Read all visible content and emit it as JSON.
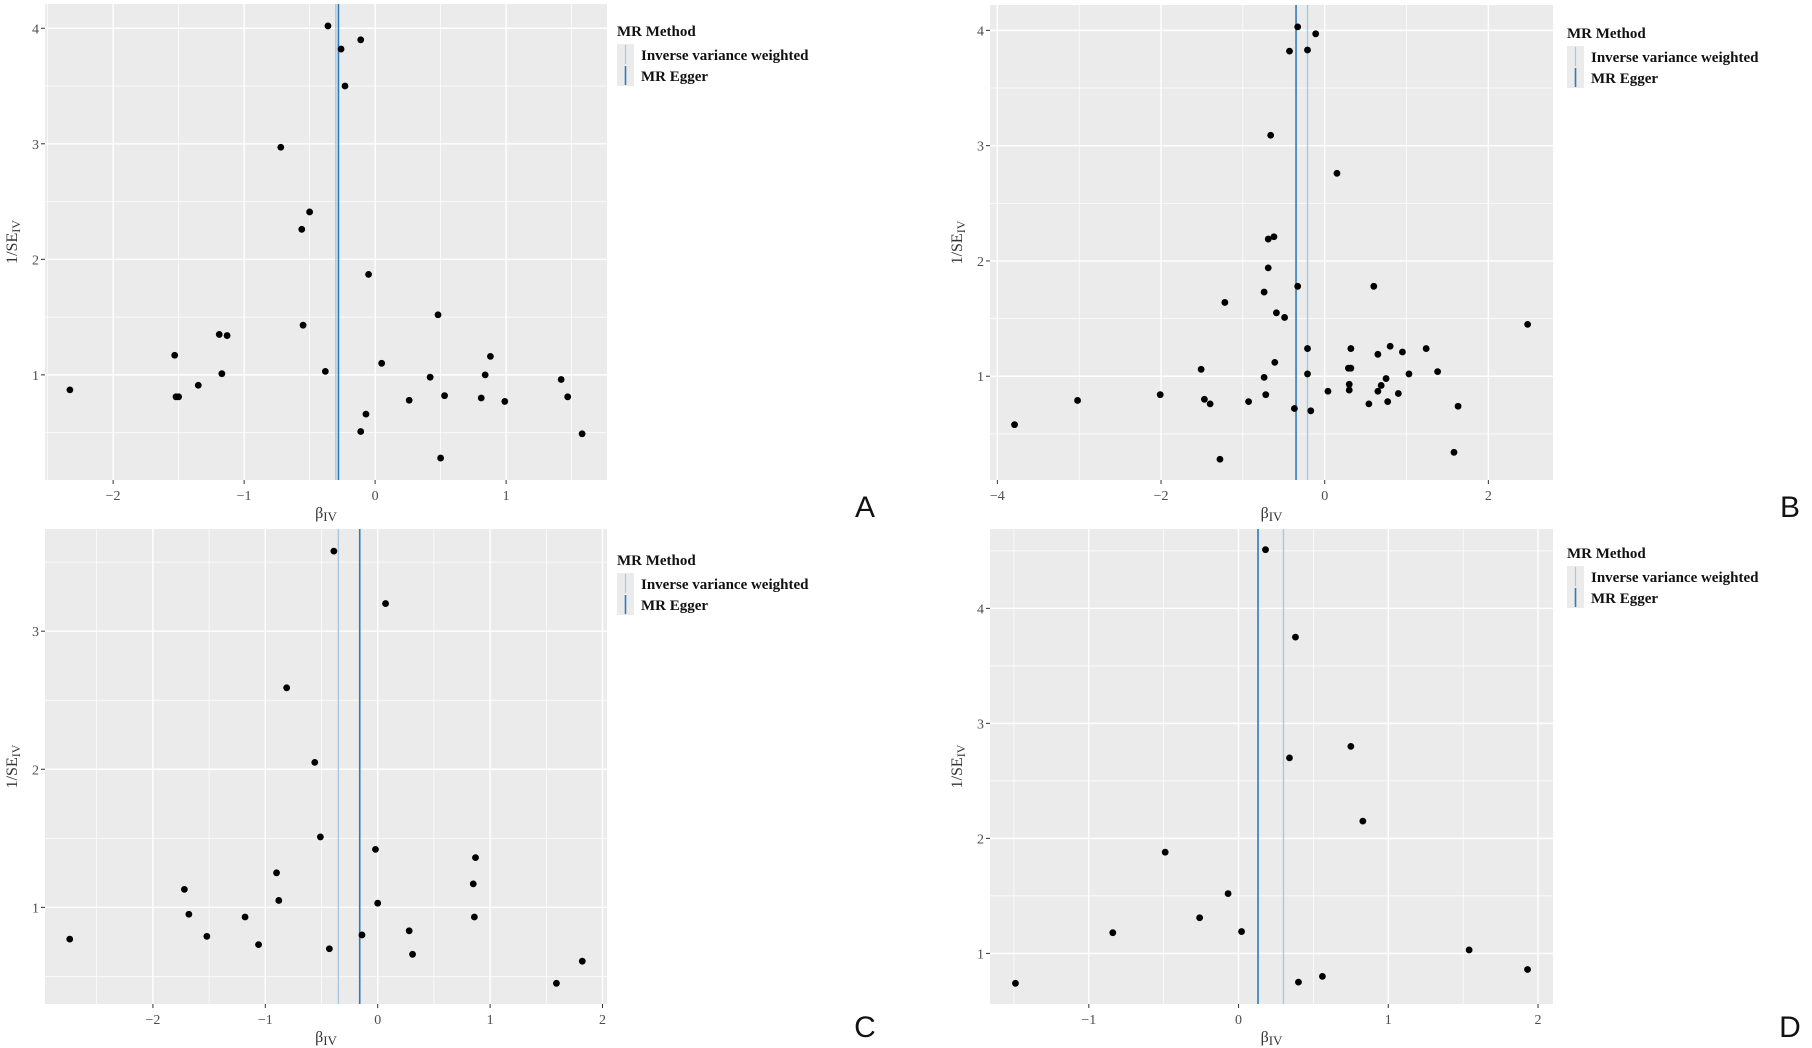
{
  "figure": {
    "legend_title": "MR Method",
    "colors": {
      "ivw": "#a6c8e0",
      "egger": "#2f7bb8",
      "panel_bg": "#ebebeb",
      "point": "#000000"
    }
  },
  "chart_data": [
    {
      "type": "scatter",
      "panel_label": "A",
      "xlabel": "βIV",
      "ylabel": "1/SEIV",
      "xlim": [
        -2.52,
        1.77
      ],
      "ylim": [
        0.09,
        4.21
      ],
      "xticks": [
        -2,
        -1,
        0,
        1
      ],
      "yticks": [
        1,
        2,
        3,
        4
      ],
      "grid": true,
      "legend_position": "right",
      "legend": [
        "Inverse variance weighted",
        "MR Egger"
      ],
      "vlines": {
        "Inverse variance weighted": -0.3,
        "MR Egger": -0.28
      },
      "points": [
        [
          -0.36,
          4.02
        ],
        [
          -0.11,
          3.9
        ],
        [
          -0.26,
          3.82
        ],
        [
          -0.23,
          3.5
        ],
        [
          -0.72,
          2.97
        ],
        [
          -0.5,
          2.41
        ],
        [
          -0.56,
          2.26
        ],
        [
          -0.05,
          1.87
        ],
        [
          0.48,
          1.52
        ],
        [
          -0.55,
          1.43
        ],
        [
          -1.19,
          1.35
        ],
        [
          -1.13,
          1.34
        ],
        [
          -1.53,
          1.17
        ],
        [
          0.88,
          1.16
        ],
        [
          0.05,
          1.1
        ],
        [
          -0.38,
          1.03
        ],
        [
          -1.17,
          1.01
        ],
        [
          0.84,
          1.0
        ],
        [
          0.42,
          0.98
        ],
        [
          1.42,
          0.96
        ],
        [
          -1.35,
          0.91
        ],
        [
          -2.33,
          0.87
        ],
        [
          -1.52,
          0.81
        ],
        [
          -1.5,
          0.81
        ],
        [
          0.53,
          0.82
        ],
        [
          1.47,
          0.81
        ],
        [
          0.81,
          0.8
        ],
        [
          0.26,
          0.78
        ],
        [
          0.99,
          0.77
        ],
        [
          -0.07,
          0.66
        ],
        [
          -0.11,
          0.51
        ],
        [
          1.58,
          0.49
        ],
        [
          0.5,
          0.28
        ]
      ]
    },
    {
      "type": "scatter",
      "panel_label": "B",
      "xlabel": "βIV",
      "ylabel": "1/SEIV",
      "xlim": [
        -4.09,
        2.79
      ],
      "ylim": [
        0.1,
        4.22
      ],
      "xticks": [
        -4,
        -2,
        0,
        2
      ],
      "yticks": [
        1,
        2,
        3,
        4
      ],
      "grid": true,
      "legend_position": "right",
      "legend": [
        "Inverse variance weighted",
        "MR Egger"
      ],
      "vlines": {
        "Inverse variance weighted": -0.21,
        "MR Egger": -0.35
      },
      "points": [
        [
          -0.33,
          4.03
        ],
        [
          -0.11,
          3.97
        ],
        [
          -0.43,
          3.82
        ],
        [
          -0.21,
          3.83
        ],
        [
          -0.66,
          3.09
        ],
        [
          0.15,
          2.76
        ],
        [
          -0.62,
          2.21
        ],
        [
          -0.69,
          2.19
        ],
        [
          -0.69,
          1.94
        ],
        [
          -0.33,
          1.78
        ],
        [
          0.6,
          1.78
        ],
        [
          -0.74,
          1.73
        ],
        [
          -1.22,
          1.64
        ],
        [
          -0.59,
          1.55
        ],
        [
          -0.49,
          1.51
        ],
        [
          2.48,
          1.45
        ],
        [
          0.8,
          1.26
        ],
        [
          -0.21,
          1.24
        ],
        [
          0.32,
          1.24
        ],
        [
          1.24,
          1.24
        ],
        [
          0.95,
          1.21
        ],
        [
          0.65,
          1.19
        ],
        [
          -0.61,
          1.12
        ],
        [
          0.29,
          1.07
        ],
        [
          0.32,
          1.07
        ],
        [
          -1.51,
          1.06
        ],
        [
          1.38,
          1.04
        ],
        [
          -0.21,
          1.02
        ],
        [
          1.03,
          1.02
        ],
        [
          -0.74,
          0.99
        ],
        [
          0.75,
          0.98
        ],
        [
          0.3,
          0.93
        ],
        [
          0.69,
          0.92
        ],
        [
          0.3,
          0.88
        ],
        [
          0.04,
          0.87
        ],
        [
          0.65,
          0.87
        ],
        [
          -2.01,
          0.84
        ],
        [
          0.9,
          0.85
        ],
        [
          -0.72,
          0.84
        ],
        [
          -3.02,
          0.79
        ],
        [
          -1.47,
          0.8
        ],
        [
          -1.4,
          0.76
        ],
        [
          -0.93,
          0.78
        ],
        [
          0.77,
          0.78
        ],
        [
          0.54,
          0.76
        ],
        [
          1.63,
          0.74
        ],
        [
          -0.37,
          0.72
        ],
        [
          -0.17,
          0.7
        ],
        [
          -3.79,
          0.58
        ],
        [
          1.58,
          0.34
        ],
        [
          -1.28,
          0.28
        ]
      ]
    },
    {
      "type": "scatter",
      "panel_label": "C",
      "xlabel": "βIV",
      "ylabel": "1/SEIV",
      "xlim": [
        -2.96,
        2.04
      ],
      "ylim": [
        0.3,
        3.74
      ],
      "xticks": [
        -2,
        -1,
        0,
        1,
        2
      ],
      "yticks": [
        1,
        2,
        3
      ],
      "grid": true,
      "legend_position": "right",
      "legend": [
        "Inverse variance weighted",
        "MR Egger"
      ],
      "vlines": {
        "Inverse variance weighted": -0.35,
        "MR Egger": -0.16
      },
      "points": [
        [
          -0.39,
          3.58
        ],
        [
          0.07,
          3.2
        ],
        [
          -0.81,
          2.59
        ],
        [
          -0.56,
          2.05
        ],
        [
          -0.51,
          1.51
        ],
        [
          -0.02,
          1.42
        ],
        [
          0.87,
          1.36
        ],
        [
          -0.9,
          1.25
        ],
        [
          -1.72,
          1.13
        ],
        [
          0.85,
          1.17
        ],
        [
          -0.88,
          1.05
        ],
        [
          0.0,
          1.03
        ],
        [
          -1.68,
          0.95
        ],
        [
          -1.18,
          0.93
        ],
        [
          0.86,
          0.93
        ],
        [
          0.28,
          0.83
        ],
        [
          -0.14,
          0.8
        ],
        [
          -1.52,
          0.79
        ],
        [
          -2.74,
          0.77
        ],
        [
          -1.06,
          0.73
        ],
        [
          -0.43,
          0.7
        ],
        [
          0.31,
          0.66
        ],
        [
          1.82,
          0.61
        ],
        [
          1.59,
          0.45
        ]
      ]
    },
    {
      "type": "scatter",
      "panel_label": "D",
      "xlabel": "βIV",
      "ylabel": "1/SEIV",
      "xlim": [
        -1.66,
        2.1
      ],
      "ylim": [
        0.56,
        4.69
      ],
      "xticks": [
        -1,
        0,
        1,
        2
      ],
      "yticks": [
        1,
        2,
        3,
        4
      ],
      "grid": true,
      "legend_position": "right",
      "legend": [
        "Inverse variance weighted",
        "MR Egger"
      ],
      "vlines": {
        "Inverse variance weighted": 0.3,
        "MR Egger": 0.13
      },
      "points": [
        [
          0.18,
          4.51
        ],
        [
          0.38,
          3.75
        ],
        [
          0.75,
          2.8
        ],
        [
          0.34,
          2.7
        ],
        [
          0.83,
          2.15
        ],
        [
          -0.49,
          1.88
        ],
        [
          -0.07,
          1.52
        ],
        [
          -0.26,
          1.31
        ],
        [
          -0.84,
          1.18
        ],
        [
          0.02,
          1.19
        ],
        [
          1.54,
          1.03
        ],
        [
          1.93,
          0.86
        ],
        [
          0.56,
          0.8
        ],
        [
          0.4,
          0.75
        ],
        [
          -1.49,
          0.74
        ]
      ]
    }
  ]
}
